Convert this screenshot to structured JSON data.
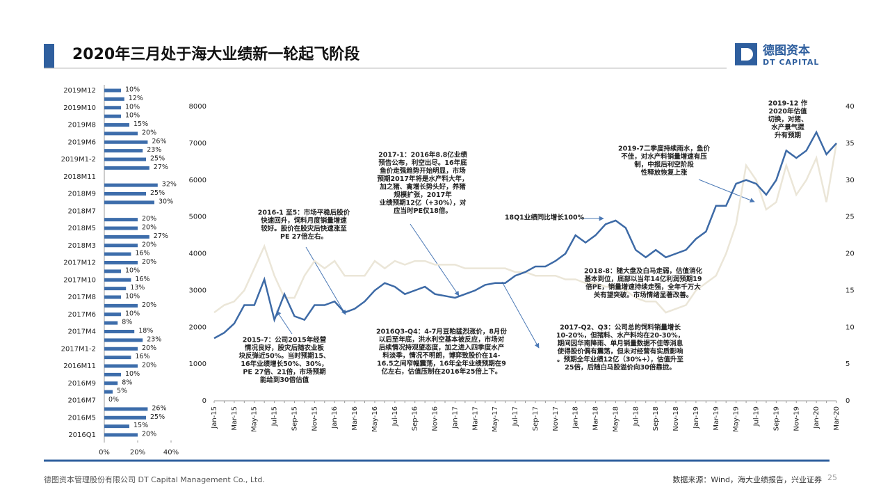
{
  "header": {
    "title": "2020年三月处于海大业绩新一轮起飞阶段",
    "logo_name": "德图资本",
    "logo_sub": "DT CAPITAL"
  },
  "footer": {
    "company": "德图资本管理股份有限公司  DT Capital Management Co., Ltd.",
    "source": "数据来源：Wind，海大业绩报告，兴业证券",
    "page": "25"
  },
  "chart_data": [
    {
      "type": "bar",
      "orientation": "horizontal",
      "color": "#3d6dab",
      "categories": [
        "2019M12",
        null,
        "2019M10",
        null,
        "2019M8",
        null,
        "2019M6",
        null,
        "2019M1-2",
        null,
        "2018M11",
        null,
        "2018M9",
        null,
        "2018M7",
        null,
        "2018M5",
        null,
        "2018M3",
        null,
        "2017M12",
        null,
        "2017M10",
        null,
        "2017M8",
        null,
        "2017M6",
        null,
        "2017M4",
        null,
        "2017M1-2",
        null,
        "2016M11",
        null,
        "2016M9",
        null,
        "2016M7",
        null,
        "2016M5",
        null,
        "2016Q1"
      ],
      "values": [
        10,
        12,
        10,
        10,
        15,
        20,
        26,
        23,
        25,
        27,
        null,
        32,
        25,
        30,
        null,
        20,
        20,
        27,
        20,
        16,
        20,
        10,
        16,
        13,
        10,
        20,
        10,
        8,
        18,
        23,
        20,
        16,
        20,
        10,
        8,
        5,
        0,
        26,
        25,
        15,
        20
      ],
      "value_labels": [
        "10%",
        "12%",
        "10%",
        "10%",
        "15%",
        "20%",
        "26%",
        "23%",
        "25%",
        "27%",
        null,
        "32%",
        "25%",
        "30%",
        null,
        "20%",
        "20%",
        "27%",
        "20%",
        "16%",
        "20%",
        "10%",
        "16%",
        "13%",
        "10%",
        "20%",
        "10%",
        "8%",
        "18%",
        "23%",
        "20%",
        "16%",
        "20%",
        "10%",
        "8%",
        "5%",
        "0%",
        "26%",
        "25%",
        "15%",
        "20%"
      ],
      "xlim": [
        0,
        40
      ],
      "xticks": [
        {
          "value": 0,
          "label": "0%"
        },
        {
          "value": 20,
          "label": "20%"
        },
        {
          "value": 40,
          "label": "40%"
        }
      ]
    },
    {
      "type": "line",
      "categories": [
        "Jan-15",
        null,
        "Mar-15",
        null,
        "May-15",
        null,
        "Jul-15",
        null,
        "Sep-15",
        null,
        "Nov-15",
        null,
        "Jan-16",
        null,
        "Mar-16",
        null,
        "May-16",
        null,
        "Jul-16",
        null,
        "Sep-16",
        null,
        "Nov-16",
        null,
        "Jan-17",
        null,
        "Mar-17",
        null,
        "May-17",
        null,
        "Jul-17",
        null,
        "Sep-17",
        null,
        "Nov-17",
        null,
        "Jan-18",
        null,
        "Mar-18",
        null,
        "May-18",
        null,
        "Jul-18",
        null,
        "Sep-18",
        null,
        "Nov-18",
        null,
        "Jan-19",
        null,
        "Mar-19",
        null,
        "May-19",
        null,
        "Jul-19",
        null,
        "Sep-19",
        null,
        "Nov-19",
        null,
        "Jan-20",
        null,
        "Mar-20"
      ],
      "series": [
        {
          "color": "#3d6aa6",
          "values": [
            1700,
            1850,
            2100,
            2600,
            2600,
            3300,
            2200,
            2900,
            2300,
            2200,
            2600,
            2600,
            2700,
            2400,
            2500,
            2700,
            3000,
            3200,
            3100,
            2900,
            3000,
            3100,
            2900,
            2850,
            2800,
            2900,
            3000,
            3150,
            3200,
            3200,
            3400,
            3500,
            3650,
            3650,
            3800,
            4000,
            4500,
            4300,
            4500,
            4800,
            4900,
            4700,
            4100,
            3900,
            4100,
            3900,
            4000,
            4100,
            4400,
            4600,
            5300,
            5300,
            5900,
            6000,
            5900,
            5600,
            6000,
            6800,
            6600,
            6800,
            7300,
            6700,
            7000
          ]
        },
        {
          "color": "#ebe6d8",
          "axis": "y2",
          "values": [
            12,
            13,
            13.5,
            15,
            18,
            21,
            17,
            14,
            14,
            17,
            19,
            18,
            19,
            17,
            17,
            17,
            19,
            18,
            19,
            18.5,
            19,
            19,
            18.5,
            18.5,
            18.5,
            18,
            18,
            18,
            18,
            18,
            17.5,
            17.5,
            17,
            17,
            17,
            16.5,
            16.5,
            16,
            16,
            15.5,
            15.5,
            15,
            14,
            13.5,
            13.5,
            12,
            12.5,
            13,
            15,
            16,
            17,
            20,
            24,
            32,
            30,
            26,
            27,
            32,
            28,
            30,
            33,
            27,
            35
          ]
        }
      ],
      "ylim": [
        0,
        8000
      ],
      "yticks": [
        0,
        1000,
        2000,
        3000,
        4000,
        5000,
        6000,
        7000,
        8000
      ],
      "y2lim": [
        0,
        40
      ],
      "y2ticks": [
        0,
        5,
        10,
        15,
        20,
        25,
        30,
        35,
        40
      ],
      "annotations": [
        [
          "2016-1 至5：市场平稳后股价",
          "快速回升，饲料月度销量增速",
          "较好。股价在股灾后快速涨至",
          "PE 27倍左右。"
        ],
        [
          "2015-7：公司2015年经营",
          "情况良好，股灾后随农业板",
          "块反弹近50%。当时预期15、",
          "16年业绩增长50%、30%，",
          "PE 27倍、21倍，市场预期",
          "能给到30倍估值"
        ],
        [
          "2017-1：2016年8.8亿业绩",
          "预告公布，利空出尽。16年底",
          "鱼价走强趋势开始明显，市场",
          "预期2017年将是水产料大年，",
          "加之猪、禽增长势头好，养猪",
          "规模扩张，2017年",
          "业绩预期12亿（+30%），对",
          "应当时PE仅18倍。"
        ],
        [
          "2016Q3-Q4：4-7月豆粕猛烈涨价，8月份",
          "以后至年底，洪水利空基本被反应，市场对",
          "后续情况持观望态度，加之进入四季度水产",
          "料淡季，情况不明朗，博弈致股价在14-",
          "16.5之间窄幅震荡，16年全年业绩预期在9",
          "亿左右，估值压制在2016年25倍上下。"
        ],
        [
          "18Q1业绩同比增长100%"
        ],
        [
          "2018-8：随大盘及白马走弱，估值消化",
          "基本到位，底部以当年14亿利润预期19",
          "倍PE，销量增速持续走强，全年千万大",
          "关有望突破。市场情绪显著改善。"
        ],
        [
          "2017-Q2、Q3：公司总的饲料销量增长",
          "10-20%，但猪料、水产料均在20-30%，",
          "期间因华南降雨、单月销量数据不佳等消息",
          "使得股价偶有震荡，但未对经营有实质影响",
          "。预期全年业绩12亿（30%+），估值升至",
          "25倍，后随白马股溢价向30倍靠拢。"
        ],
        [
          "2019-7二季度持续雨水，鱼价",
          "不佳，对水产料销量增速有压",
          "制，中报后利空阶段",
          "性释放恢复上涨"
        ],
        [
          "2019-12 作",
          "2020年估值",
          "切换，对猪、",
          "水产景气提",
          "升有预期"
        ]
      ]
    }
  ]
}
